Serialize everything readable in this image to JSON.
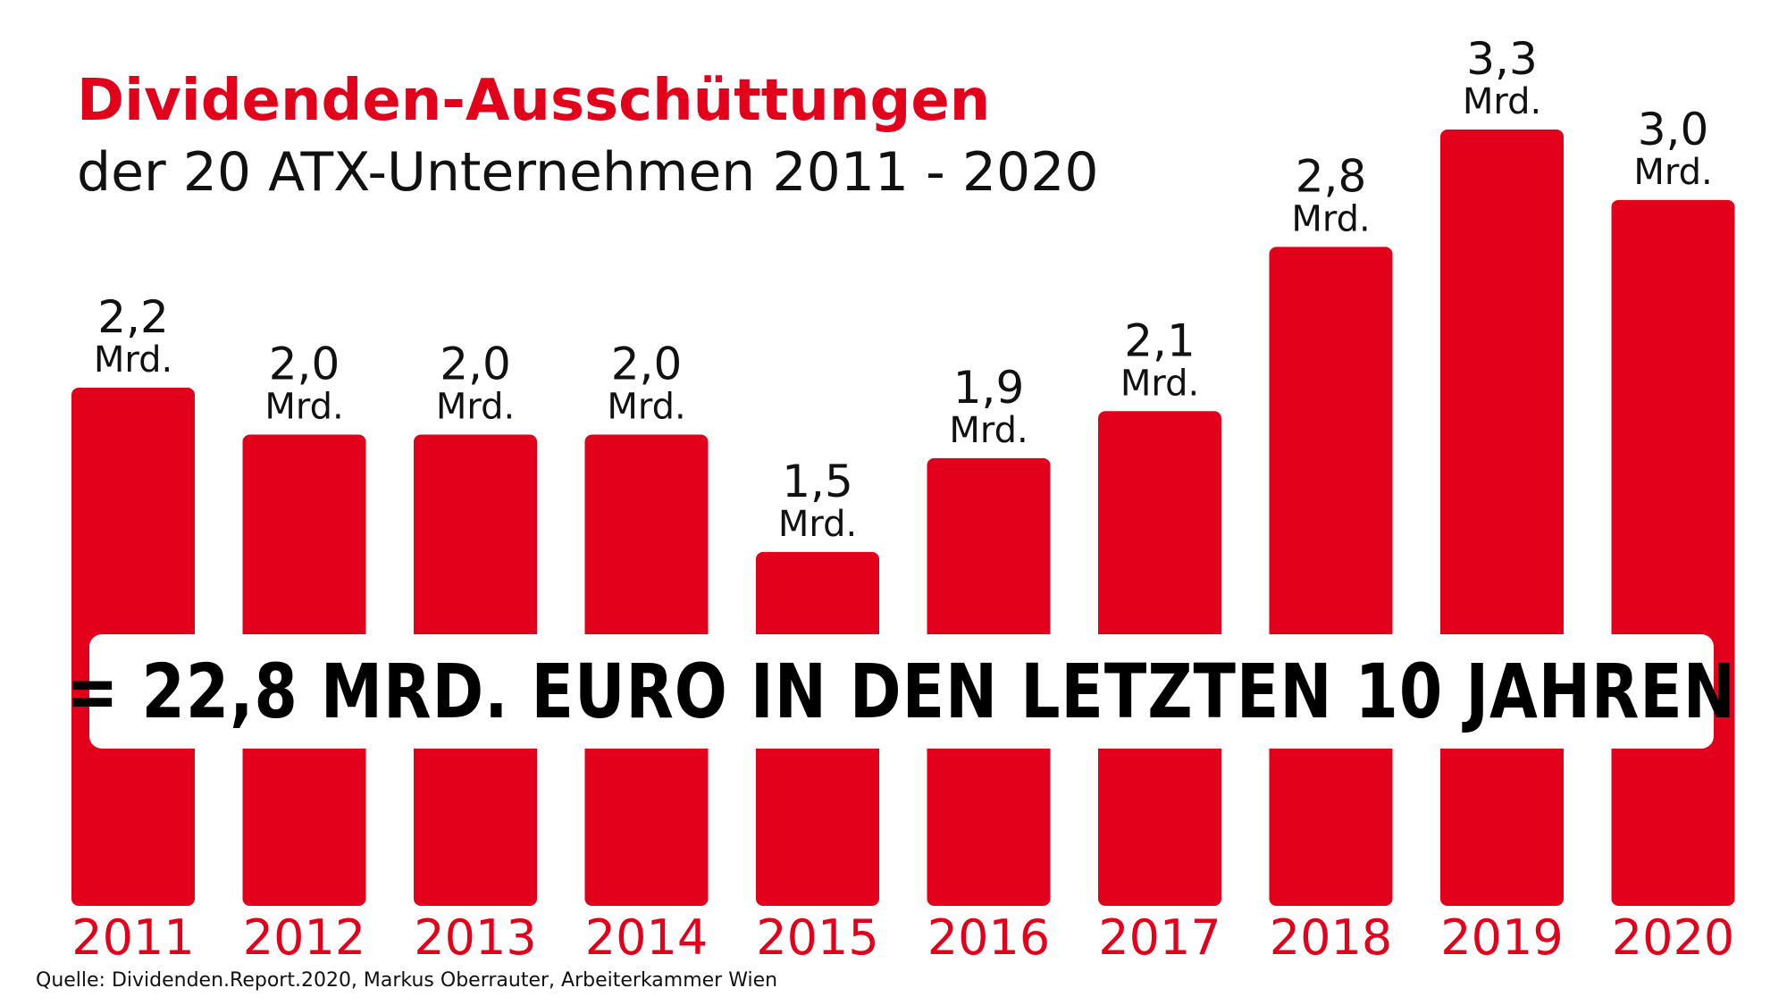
{
  "header": {
    "title": "Dividenden-Ausschüttungen",
    "subtitle": "der 20 ATX-Unternehmen 2011 - 2020"
  },
  "banner": {
    "text": "= 22,8 MRD. EURO IN DEN LETZTEN 10 JAHREN"
  },
  "source": {
    "text": "Quelle: Dividenden.Report.2020, Markus Oberrauter, Arbeiterkammer Wien"
  },
  "colors": {
    "bar": "#e2001a",
    "year_label": "#e2001a",
    "value_label": "#111111",
    "background": "#ffffff"
  },
  "chart_data": {
    "type": "bar",
    "title": "Dividenden-Ausschüttungen der 20 ATX-Unternehmen 2011 - 2020",
    "categories": [
      "2011",
      "2012",
      "2013",
      "2014",
      "2015",
      "2016",
      "2017",
      "2018",
      "2019",
      "2020"
    ],
    "values": [
      2.2,
      2.0,
      2.0,
      2.0,
      1.5,
      1.9,
      2.1,
      2.8,
      3.3,
      3.0
    ],
    "value_labels": [
      "2,2",
      "2,0",
      "2,0",
      "2,0",
      "1,5",
      "1,9",
      "2,1",
      "2,8",
      "3,3",
      "3,0"
    ],
    "unit_label": "Mrd.",
    "xlabel": "",
    "ylabel": "",
    "ylim": [
      0,
      3.3
    ],
    "grid": false,
    "legend": "none"
  }
}
